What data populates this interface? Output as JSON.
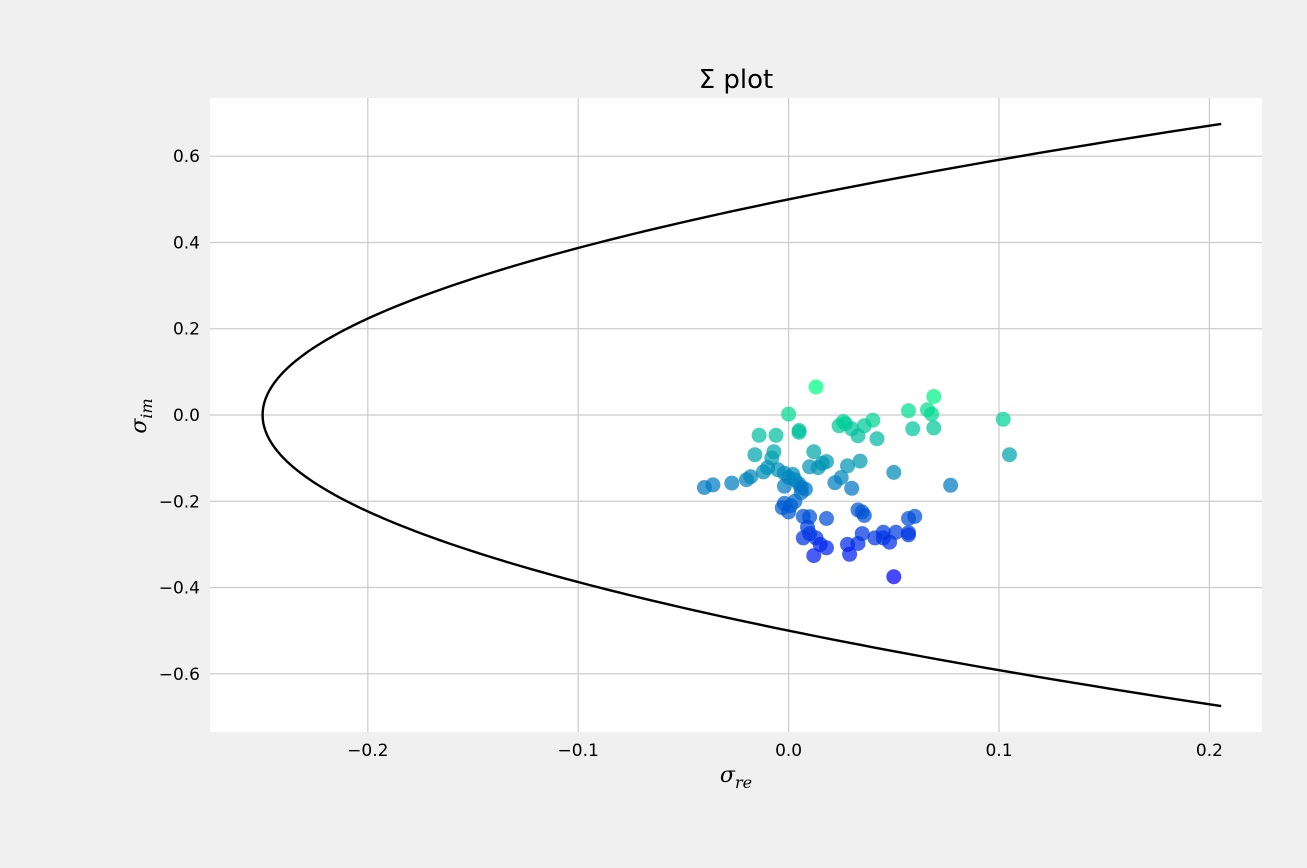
{
  "chart_data": {
    "type": "scatter",
    "title": "Σ plot",
    "xlabel": {
      "base": "σ",
      "sub": "re"
    },
    "ylabel": {
      "base": "σ",
      "sub": "im"
    },
    "xlim": [
      -0.275,
      0.225
    ],
    "ylim": [
      -0.735,
      0.735
    ],
    "xticks": [
      -0.2,
      -0.1,
      0.0,
      0.1,
      0.2
    ],
    "xtick_labels": [
      "−0.2",
      "−0.1",
      "0.0",
      "0.1",
      "0.2"
    ],
    "yticks": [
      -0.6,
      -0.4,
      -0.2,
      0.0,
      0.2,
      0.4,
      0.6
    ],
    "ytick_labels": [
      "−0.6",
      "−0.4",
      "−0.2",
      "0.0",
      "0.2",
      "0.4",
      "0.6"
    ],
    "grid": true,
    "boundary_curve": {
      "equation": "x = y^2 - 0.25",
      "y_range": [
        -0.675,
        0.675
      ],
      "color": "#000000"
    },
    "colormap": [
      "#0000ff",
      "#00ff80"
    ],
    "color_by": "y",
    "points": [
      [
        0.013,
        0.065
      ],
      [
        0.0,
        0.002
      ],
      [
        -0.014,
        -0.047
      ],
      [
        -0.006,
        -0.047
      ],
      [
        0.005,
        -0.036
      ],
      [
        0.005,
        -0.04
      ],
      [
        0.012,
        -0.085
      ],
      [
        -0.016,
        -0.092
      ],
      [
        -0.007,
        -0.085
      ],
      [
        -0.008,
        -0.1
      ],
      [
        -0.036,
        -0.162
      ],
      [
        -0.04,
        -0.168
      ],
      [
        -0.027,
        -0.158
      ],
      [
        -0.02,
        -0.15
      ],
      [
        -0.018,
        -0.143
      ],
      [
        -0.012,
        -0.132
      ],
      [
        -0.01,
        -0.122
      ],
      [
        -0.005,
        -0.127
      ],
      [
        -0.002,
        -0.135
      ],
      [
        0.0,
        -0.145
      ],
      [
        0.003,
        -0.15
      ],
      [
        0.005,
        -0.16
      ],
      [
        0.006,
        -0.168
      ],
      [
        -0.002,
        -0.165
      ],
      [
        0.008,
        -0.172
      ],
      [
        0.002,
        -0.138
      ],
      [
        0.01,
        -0.12
      ],
      [
        0.016,
        -0.112
      ],
      [
        0.018,
        -0.108
      ],
      [
        0.014,
        -0.122
      ],
      [
        0.022,
        -0.157
      ],
      [
        0.025,
        -0.145
      ],
      [
        0.028,
        -0.118
      ],
      [
        0.03,
        -0.17
      ],
      [
        0.034,
        -0.107
      ],
      [
        0.024,
        -0.025
      ],
      [
        0.027,
        -0.02
      ],
      [
        0.026,
        -0.015
      ],
      [
        0.03,
        -0.032
      ],
      [
        0.033,
        -0.048
      ],
      [
        0.036,
        -0.025
      ],
      [
        0.04,
        -0.012
      ],
      [
        0.042,
        -0.055
      ],
      [
        0.057,
        0.01
      ],
      [
        0.059,
        -0.032
      ],
      [
        0.066,
        0.012
      ],
      [
        0.068,
        0.002
      ],
      [
        0.069,
        -0.03
      ],
      [
        0.069,
        0.043
      ],
      [
        0.102,
        -0.01
      ],
      [
        0.105,
        -0.092
      ],
      [
        0.05,
        -0.133
      ],
      [
        0.077,
        -0.163
      ],
      [
        -0.002,
        -0.205
      ],
      [
        0.001,
        -0.21
      ],
      [
        -0.003,
        -0.215
      ],
      [
        0.0,
        -0.225
      ],
      [
        0.003,
        -0.2
      ],
      [
        0.006,
        -0.18
      ],
      [
        0.007,
        -0.235
      ],
      [
        0.01,
        -0.236
      ],
      [
        0.009,
        -0.26
      ],
      [
        0.01,
        -0.275
      ],
      [
        0.007,
        -0.285
      ],
      [
        0.013,
        -0.285
      ],
      [
        0.015,
        -0.3
      ],
      [
        0.018,
        -0.308
      ],
      [
        0.012,
        -0.326
      ],
      [
        0.018,
        -0.24
      ],
      [
        0.033,
        -0.22
      ],
      [
        0.035,
        -0.225
      ],
      [
        0.036,
        -0.233
      ],
      [
        0.028,
        -0.3
      ],
      [
        0.029,
        -0.323
      ],
      [
        0.033,
        -0.298
      ],
      [
        0.035,
        -0.275
      ],
      [
        0.041,
        -0.285
      ],
      [
        0.045,
        -0.272
      ],
      [
        0.045,
        -0.285
      ],
      [
        0.048,
        -0.295
      ],
      [
        0.051,
        -0.272
      ],
      [
        0.057,
        -0.24
      ],
      [
        0.06,
        -0.235
      ],
      [
        0.057,
        -0.273
      ],
      [
        0.057,
        -0.278
      ],
      [
        0.05,
        -0.375
      ]
    ]
  }
}
